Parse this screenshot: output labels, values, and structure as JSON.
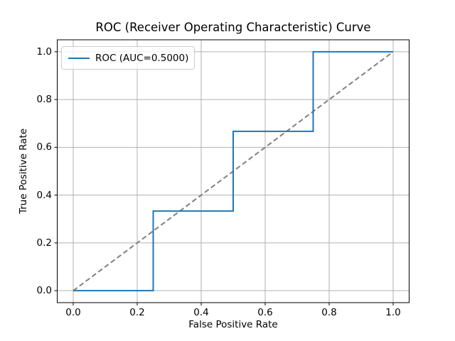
{
  "figure": {
    "background": "#ffffff"
  },
  "chart_data": {
    "type": "line",
    "subtype": "roc-step-curve",
    "title": "ROC (Receiver Operating Characteristic) Curve",
    "xlabel": "False Positive Rate",
    "ylabel": "True Positive Rate",
    "xlim": [
      0.0,
      1.0
    ],
    "ylim": [
      0.0,
      1.0
    ],
    "axis_margin": 0.05,
    "grid": true,
    "x_ticks": [
      0.0,
      0.2,
      0.4,
      0.6,
      0.8,
      1.0
    ],
    "x_tick_labels": [
      "0.0",
      "0.2",
      "0.4",
      "0.6",
      "0.8",
      "1.0"
    ],
    "y_ticks": [
      0.0,
      0.2,
      0.4,
      0.6,
      0.8,
      1.0
    ],
    "y_tick_labels": [
      "0.0",
      "0.2",
      "0.4",
      "0.6",
      "0.8",
      "1.0"
    ],
    "legend": {
      "position": "upper left",
      "entries": [
        {
          "label": "ROC (AUC=0.5000)",
          "color": "#1f77b4",
          "line_style": "solid"
        }
      ]
    },
    "series": [
      {
        "name": "chance-diagonal",
        "color": "#808080",
        "line_style": "dashed",
        "line_width": 2,
        "x": [
          0.0,
          1.0
        ],
        "y": [
          0.0,
          1.0
        ]
      },
      {
        "name": "roc-curve",
        "color": "#1f77b4",
        "line_style": "solid",
        "line_width": 2,
        "x": [
          0.0,
          0.25,
          0.25,
          0.5,
          0.5,
          0.75,
          0.75,
          1.0
        ],
        "y": [
          0.0,
          0.0,
          0.3333,
          0.3333,
          0.6667,
          0.6667,
          1.0,
          1.0
        ]
      }
    ],
    "colors": {
      "grid": "#b0b0b0",
      "spine": "#000000",
      "text": "#000000",
      "background": "#ffffff"
    }
  }
}
